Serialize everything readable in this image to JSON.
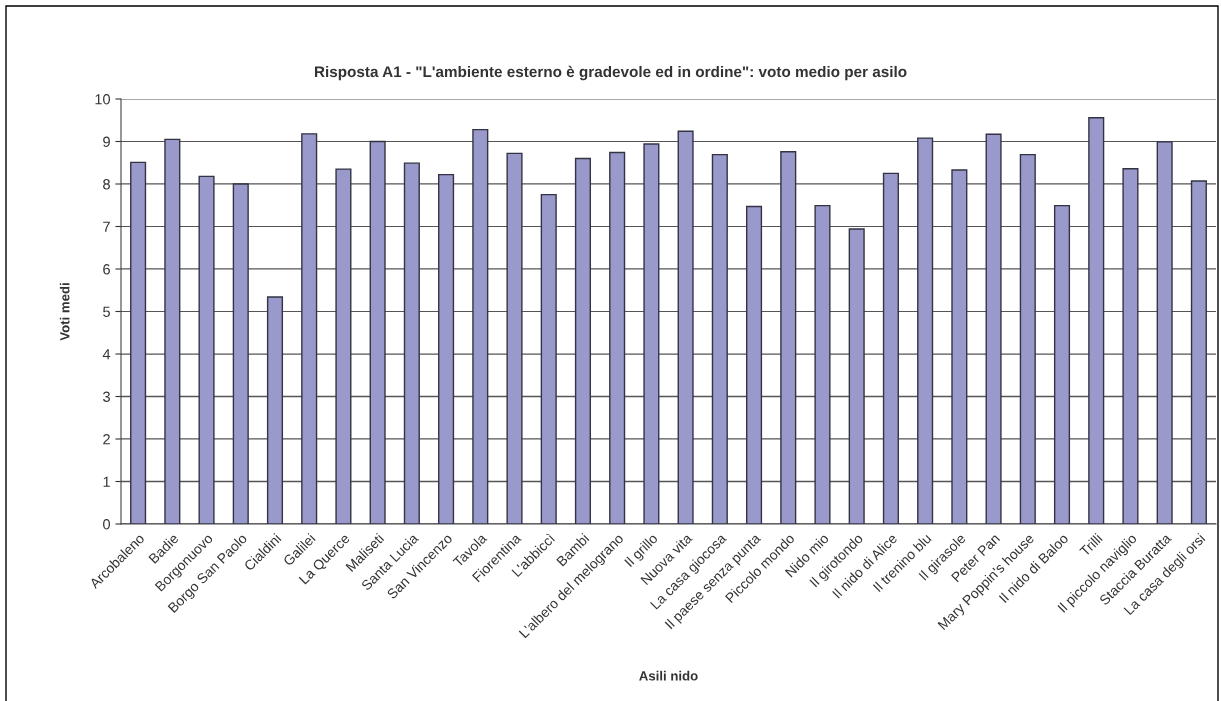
{
  "chart_data": {
    "type": "bar",
    "title": "Risposta A1 - \"L'ambiente esterno è gradevole ed in ordine\": voto medio per asilo",
    "xlabel": "Asili nido",
    "ylabel": "Voti medi",
    "categories": [
      "Arcobaleno",
      "Badie",
      "Borgonuovo",
      "Borgo San Paolo",
      "Cialdini",
      "Galilei",
      "La Querce",
      "Maliseti",
      "Santa Lucia",
      "San Vincenzo",
      "Tavola",
      "Fiorentina",
      "L'abbiccì",
      "Bambi",
      "L'albero del melograno",
      "Il grillo",
      "Nuova vita",
      "La casa giocosa",
      "Il paese senza punta",
      "Piccolo mondo",
      "Nido mio",
      "Il girotondo",
      "Il nido di Alice",
      "Il trenino blu",
      "Il girasole",
      "Peter Pan",
      "Mary Poppin's house",
      "Il nido di Baloo",
      "Trilli",
      "Il piccolo naviglio",
      "Staccia Buratta",
      "La casa degli orsi"
    ],
    "values": [
      8.51,
      9.05,
      8.18,
      8.0,
      5.34,
      9.18,
      8.35,
      9.0,
      8.49,
      8.22,
      9.28,
      8.72,
      7.75,
      8.6,
      8.74,
      8.94,
      9.24,
      8.69,
      7.47,
      8.76,
      7.49,
      6.94,
      8.25,
      9.08,
      8.33,
      9.17,
      8.69,
      7.49,
      9.56,
      8.36,
      8.99,
      8.07
    ],
    "color": "#9999cc",
    "ylim": [
      0,
      10
    ],
    "yticks": [
      0,
      1,
      2,
      3,
      4,
      5,
      6,
      7,
      8,
      9,
      10
    ],
    "grid": "y",
    "legend": false
  }
}
